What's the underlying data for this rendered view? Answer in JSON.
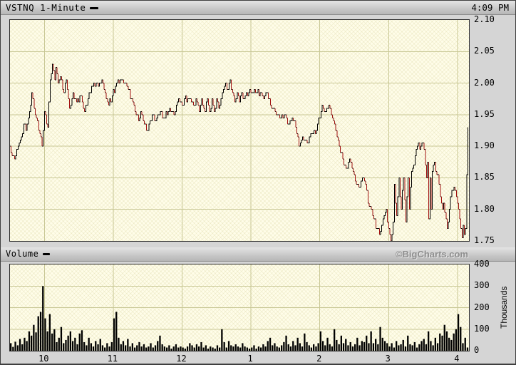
{
  "header": {
    "title": "VSTNQ 1-Minute",
    "time": "4:09 PM"
  },
  "volume_header": {
    "label": "Volume",
    "watermark": "©BigCharts.com",
    "axis_label": "Thousands"
  },
  "colors": {
    "frame_gray": "#d5d5d5",
    "plot_background": "#fffde9",
    "grid": "#c8c795",
    "price_line": "#000000",
    "down_tick": "#a21010",
    "volume_bar": "#000000",
    "watermark_gray": "#8f8f8f"
  },
  "chart_data": [
    {
      "type": "line",
      "title": "VSTNQ 1-Minute intraday price",
      "style": "step line with red down-ticks",
      "x_unit": "minutes after 9:30 ET",
      "x_total_minutes": 400,
      "x_tick_labels": [
        "10",
        "11",
        "12",
        "1",
        "2",
        "3",
        "4"
      ],
      "x_tick_minutes": [
        30,
        90,
        150,
        210,
        270,
        330,
        390
      ],
      "ylim": [
        1.75,
        2.1
      ],
      "y_tick_values": [
        2.1,
        2.05,
        2.0,
        1.95,
        1.9,
        1.85,
        1.8,
        1.75
      ],
      "y_tick_labels": [
        "2.10",
        "2.05",
        "2.00",
        "1.95",
        "1.90",
        "1.85",
        "1.80",
        "1.75"
      ],
      "y_gridlines": [
        2.05,
        2.0,
        1.95,
        1.9,
        1.85,
        1.8
      ],
      "grid": true,
      "series": [
        {
          "name": "price",
          "open": 1.9,
          "high": 2.03,
          "low": 1.75,
          "last": 1.93,
          "points": [
            [
              0,
              1.9
            ],
            [
              2,
              1.885
            ],
            [
              4,
              1.88
            ],
            [
              7,
              1.9
            ],
            [
              10,
              1.915
            ],
            [
              12,
              1.935
            ],
            [
              14,
              1.925
            ],
            [
              17,
              1.955
            ],
            [
              19,
              1.985
            ],
            [
              21,
              1.96
            ],
            [
              23,
              1.945
            ],
            [
              26,
              1.92
            ],
            [
              28,
              1.9
            ],
            [
              30,
              1.955
            ],
            [
              33,
              1.93
            ],
            [
              35,
              2.005
            ],
            [
              37,
              2.03
            ],
            [
              39,
              2.005
            ],
            [
              40,
              2.025
            ],
            [
              42,
              2.0
            ],
            [
              44,
              2.01
            ],
            [
              47,
              1.985
            ],
            [
              49,
              2.005
            ],
            [
              52,
              1.96
            ],
            [
              55,
              1.985
            ],
            [
              58,
              1.97
            ],
            [
              62,
              1.98
            ],
            [
              65,
              1.955
            ],
            [
              68,
              1.975
            ],
            [
              71,
              1.995
            ],
            [
              76,
              2.0
            ],
            [
              81,
              2.0
            ],
            [
              84,
              1.975
            ],
            [
              86,
              1.965
            ],
            [
              89,
              1.98
            ],
            [
              93,
              2.0
            ],
            [
              98,
              2.005
            ],
            [
              102,
              1.995
            ],
            [
              106,
              1.975
            ],
            [
              109,
              1.955
            ],
            [
              112,
              1.94
            ],
            [
              114,
              1.955
            ],
            [
              117,
              1.935
            ],
            [
              120,
              1.925
            ],
            [
              124,
              1.95
            ],
            [
              127,
              1.94
            ],
            [
              131,
              1.955
            ],
            [
              135,
              1.945
            ],
            [
              139,
              1.96
            ],
            [
              143,
              1.95
            ],
            [
              147,
              1.975
            ],
            [
              150,
              1.965
            ],
            [
              152,
              1.975
            ],
            [
              157,
              1.975
            ],
            [
              160,
              1.965
            ],
            [
              162,
              1.975
            ],
            [
              165,
              1.955
            ],
            [
              167,
              1.975
            ],
            [
              170,
              1.955
            ],
            [
              172,
              1.975
            ],
            [
              174,
              1.955
            ],
            [
              176,
              1.975
            ],
            [
              178,
              1.955
            ],
            [
              180,
              1.975
            ],
            [
              182,
              1.96
            ],
            [
              184,
              1.975
            ],
            [
              186,
              1.99
            ],
            [
              188,
              2.0
            ],
            [
              190,
              1.99
            ],
            [
              192,
              2.005
            ],
            [
              194,
              1.985
            ],
            [
              196,
              1.97
            ],
            [
              198,
              1.985
            ],
            [
              200,
              1.97
            ],
            [
              202,
              1.985
            ],
            [
              204,
              1.975
            ],
            [
              206,
              1.985
            ],
            [
              210,
              1.985
            ],
            [
              214,
              1.985
            ],
            [
              218,
              1.985
            ],
            [
              221,
              1.975
            ],
            [
              224,
              1.985
            ],
            [
              227,
              1.965
            ],
            [
              231,
              1.955
            ],
            [
              235,
              1.945
            ],
            [
              239,
              1.95
            ],
            [
              243,
              1.935
            ],
            [
              246,
              1.945
            ],
            [
              249,
              1.93
            ],
            [
              252,
              1.9
            ],
            [
              255,
              1.915
            ],
            [
              259,
              1.905
            ],
            [
              263,
              1.92
            ],
            [
              267,
              1.925
            ],
            [
              272,
              1.965
            ],
            [
              275,
              1.955
            ],
            [
              278,
              1.965
            ],
            [
              281,
              1.945
            ],
            [
              284,
              1.925
            ],
            [
              287,
              1.9
            ],
            [
              290,
              1.88
            ],
            [
              293,
              1.865
            ],
            [
              296,
              1.88
            ],
            [
              299,
              1.86
            ],
            [
              301,
              1.845
            ],
            [
              304,
              1.835
            ],
            [
              308,
              1.85
            ],
            [
              310,
              1.84
            ],
            [
              312,
              1.81
            ],
            [
              315,
              1.8
            ],
            [
              317,
              1.785
            ],
            [
              320,
              1.77
            ],
            [
              322,
              1.76
            ],
            [
              324,
              1.775
            ],
            [
              326,
              1.79
            ],
            [
              328,
              1.8
            ],
            [
              330,
              1.77
            ],
            [
              332,
              1.75
            ],
            [
              334,
              1.78
            ],
            [
              335,
              1.84
            ],
            [
              337,
              1.79
            ],
            [
              339,
              1.85
            ],
            [
              341,
              1.8
            ],
            [
              343,
              1.85
            ],
            [
              345,
              1.78
            ],
            [
              347,
              1.85
            ],
            [
              348,
              1.8
            ],
            [
              350,
              1.86
            ],
            [
              352,
              1.87
            ],
            [
              354,
              1.895
            ],
            [
              356,
              1.905
            ],
            [
              357,
              1.895
            ],
            [
              359,
              1.905
            ],
            [
              361,
              1.895
            ],
            [
              362,
              1.87
            ],
            [
              363,
              1.85
            ],
            [
              364,
              1.875
            ],
            [
              365,
              1.785
            ],
            [
              366,
              1.85
            ],
            [
              367,
              1.8
            ],
            [
              368,
              1.86
            ],
            [
              370,
              1.875
            ],
            [
              371,
              1.86
            ],
            [
              373,
              1.855
            ],
            [
              375,
              1.82
            ],
            [
              377,
              1.8
            ],
            [
              378,
              1.81
            ],
            [
              379,
              1.795
            ],
            [
              381,
              1.77
            ],
            [
              383,
              1.8
            ],
            [
              385,
              1.83
            ],
            [
              387,
              1.835
            ],
            [
              389,
              1.82
            ],
            [
              391,
              1.8
            ],
            [
              392,
              1.785
            ],
            [
              393,
              1.77
            ],
            [
              394,
              1.755
            ],
            [
              395,
              1.775
            ],
            [
              396,
              1.76
            ],
            [
              397,
              1.77
            ],
            [
              399,
              1.93
            ]
          ]
        }
      ]
    },
    {
      "type": "bar",
      "title": "Volume",
      "x_unit": "minutes after 9:30 ET",
      "x_total_minutes": 400,
      "x_tick_labels": [
        "10",
        "11",
        "12",
        "1",
        "2",
        "3",
        "4"
      ],
      "x_tick_minutes": [
        30,
        90,
        150,
        210,
        270,
        330,
        390
      ],
      "ylim": [
        0,
        400
      ],
      "y_tick_values": [
        400,
        300,
        200,
        100,
        0
      ],
      "y_tick_labels": [
        "400",
        "300",
        "200",
        "100",
        "0"
      ],
      "y_gridlines": [
        300,
        200,
        100
      ],
      "grid": true,
      "unit": "thousands of shares",
      "bucket_minutes": 2,
      "values_thousands": [
        35,
        18,
        42,
        25,
        55,
        30,
        60,
        45,
        90,
        70,
        120,
        85,
        160,
        180,
        300,
        150,
        90,
        170,
        80,
        100,
        40,
        60,
        110,
        35,
        50,
        70,
        90,
        45,
        60,
        30,
        80,
        95,
        40,
        25,
        60,
        35,
        20,
        45,
        30,
        55,
        25,
        15,
        35,
        20,
        40,
        150,
        180,
        60,
        30,
        45,
        25,
        55,
        20,
        35,
        15,
        25,
        40,
        20,
        30,
        15,
        20,
        35,
        15,
        25,
        45,
        70,
        30,
        20,
        15,
        25,
        10,
        20,
        30,
        15,
        20,
        15,
        10,
        20,
        35,
        25,
        15,
        30,
        20,
        40,
        15,
        25,
        10,
        20,
        15,
        10,
        25,
        15,
        100,
        40,
        15,
        45,
        25,
        20,
        30,
        20,
        15,
        35,
        20,
        15,
        10,
        15,
        25,
        10,
        20,
        15,
        30,
        20,
        45,
        60,
        25,
        35,
        20,
        15,
        25,
        40,
        70,
        30,
        20,
        45,
        25,
        60,
        35,
        20,
        80,
        40,
        25,
        15,
        30,
        20,
        35,
        90,
        45,
        25,
        60,
        30,
        20,
        100,
        50,
        30,
        70,
        35,
        55,
        25,
        40,
        20,
        30,
        60,
        25,
        45,
        40,
        70,
        35,
        90,
        35,
        55,
        30,
        110,
        60,
        45,
        35,
        20,
        35,
        15,
        45,
        25,
        30,
        50,
        20,
        70,
        30,
        25,
        40,
        15,
        30,
        45,
        55,
        30,
        90,
        45,
        25,
        60,
        35,
        80,
        70,
        120,
        90,
        60,
        50,
        80,
        100,
        170,
        110,
        35,
        60,
        15
      ]
    }
  ]
}
